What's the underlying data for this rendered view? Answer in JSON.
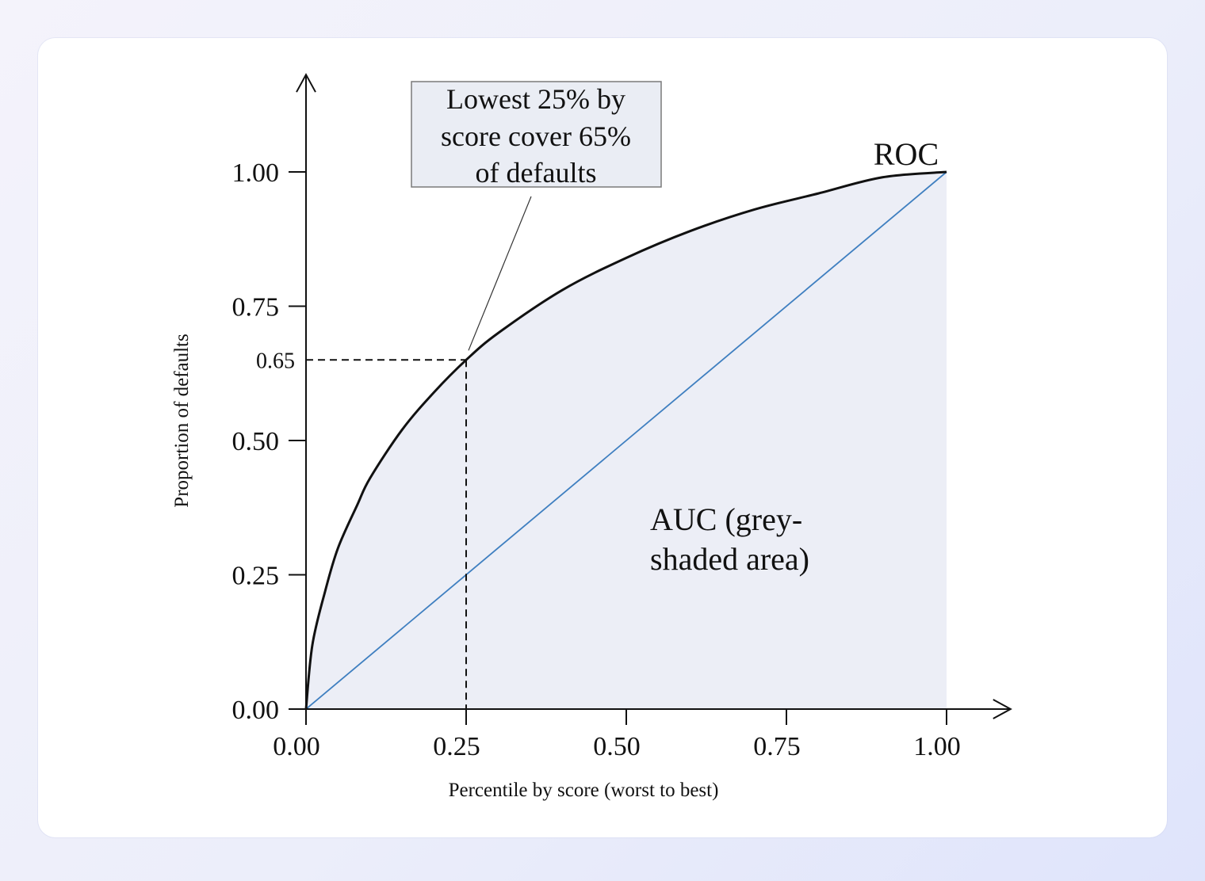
{
  "chart_data": {
    "type": "line",
    "title": "",
    "xlabel": "Percentile by score (worst to best)",
    "ylabel": "Proportion of defaults",
    "xlim": [
      0,
      1.1
    ],
    "ylim": [
      0,
      1.1
    ],
    "x_ticks": [
      "0.00",
      "0.25",
      "0.50",
      "0.75",
      "1.00"
    ],
    "y_ticks": [
      "0.00",
      "0.25",
      "0.50",
      "0.75",
      "1.00"
    ],
    "y_extra_tick": "0.65",
    "grid": false,
    "series": [
      {
        "name": "ROC",
        "color": "#111111",
        "x": [
          0,
          0.01,
          0.03,
          0.05,
          0.08,
          0.1,
          0.15,
          0.2,
          0.25,
          0.3,
          0.4,
          0.5,
          0.6,
          0.7,
          0.8,
          0.9,
          1.0
        ],
        "y": [
          0,
          0.12,
          0.22,
          0.3,
          0.38,
          0.43,
          0.52,
          0.59,
          0.65,
          0.7,
          0.78,
          0.84,
          0.89,
          0.93,
          0.96,
          0.99,
          1.0
        ]
      },
      {
        "color": "#3f7fc0",
        "x": [
          0,
          1.0
        ],
        "y": [
          0,
          1.0
        ]
      }
    ],
    "shaded_area": {
      "color": "#eceef6"
    },
    "reference_point": {
      "x": 0.25,
      "y": 0.65
    },
    "annotations": {
      "callout_lines": [
        "Lowest 25% by",
        "score cover 65%",
        "of defaults"
      ],
      "roc_label": "ROC",
      "auc_label_lines": [
        "AUC (grey-",
        "shaded area)"
      ]
    }
  }
}
